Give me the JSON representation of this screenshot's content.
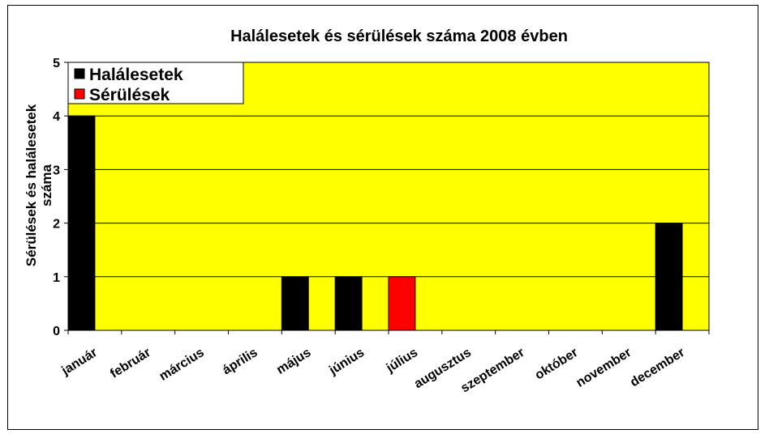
{
  "chart_data": {
    "type": "bar",
    "title": "Halálesetek és sérülések száma 2008 évben",
    "xlabel": "",
    "ylabel_line1": "Sérülések és halálesetek",
    "ylabel_line2": "száma",
    "ylim": [
      0,
      5
    ],
    "yticks": [
      0,
      1,
      2,
      3,
      4,
      5
    ],
    "grid": true,
    "legend_position": "top-left",
    "plot_background": "#ffff00",
    "categories": [
      "január",
      "február",
      "március",
      "április",
      "május",
      "június",
      "július",
      "augusztus",
      "szeptember",
      "október",
      "november",
      "december"
    ],
    "series": [
      {
        "name": "Halálesetek",
        "color": "#000000",
        "values": [
          4,
          0,
          0,
          0,
          1,
          1,
          0,
          0,
          0,
          0,
          0,
          2
        ]
      },
      {
        "name": "Sérülések",
        "color": "#ff0000",
        "values": [
          0,
          0,
          0,
          0,
          0,
          0,
          1,
          0,
          0,
          0,
          0,
          0
        ]
      }
    ]
  }
}
